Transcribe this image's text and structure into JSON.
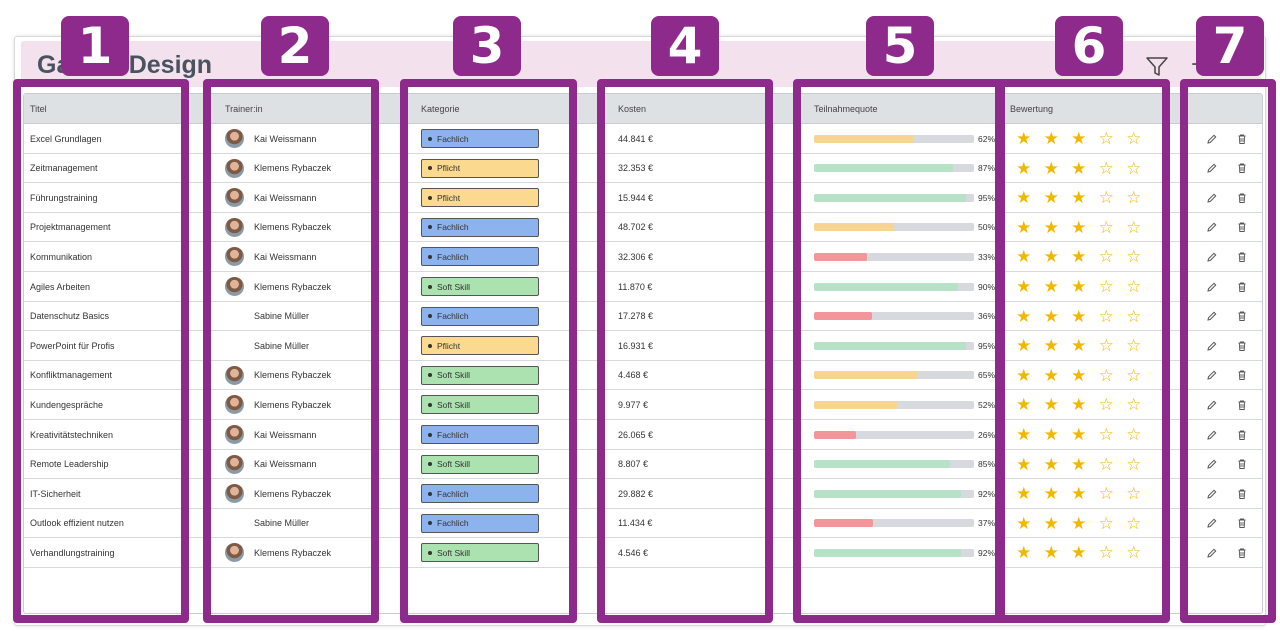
{
  "card": {
    "title": "Galerie Design"
  },
  "columns": {
    "title": "Titel",
    "trainer": "Trainer:in",
    "category": "Kategorie",
    "cost": "Kosten",
    "participation": "Teilnahmequote",
    "rating": "Bewertung"
  },
  "colors": {
    "accent_purple": "#8e2a8b",
    "header_pink": "#f4e1ee",
    "fachlich": "#8db3ee",
    "pflicht": "#fbd98f",
    "soft_skill": "#abe2b0",
    "bar_high": "#b7e2c7",
    "bar_mid": "#f7d48f",
    "bar_low": "#f4959a",
    "star": "#f2b800"
  },
  "annotations": [
    "1",
    "2",
    "3",
    "4",
    "5",
    "6",
    "7"
  ],
  "rows": [
    {
      "title": "Excel Grundlagen",
      "trainer": "Kai Weissmann",
      "has_avatar": true,
      "category": "Fachlich",
      "cost": "44.841 €",
      "pct": 62,
      "pct_label": "62%",
      "rating": 3
    },
    {
      "title": "Zeitmanagement",
      "trainer": "Klemens Rybaczek",
      "has_avatar": true,
      "category": "Pflicht",
      "cost": "32.353 €",
      "pct": 87,
      "pct_label": "87%",
      "rating": 3
    },
    {
      "title": "Führungstraining",
      "trainer": "Kai Weissmann",
      "has_avatar": true,
      "category": "Pflicht",
      "cost": "15.944 €",
      "pct": 95,
      "pct_label": "95%",
      "rating": 3
    },
    {
      "title": "Projektmanagement",
      "trainer": "Klemens Rybaczek",
      "has_avatar": true,
      "category": "Fachlich",
      "cost": "48.702 €",
      "pct": 50,
      "pct_label": "50%",
      "rating": 3
    },
    {
      "title": "Kommunikation",
      "trainer": "Kai Weissmann",
      "has_avatar": true,
      "category": "Fachlich",
      "cost": "32.306 €",
      "pct": 33,
      "pct_label": "33%",
      "rating": 3
    },
    {
      "title": "Agiles Arbeiten",
      "trainer": "Klemens Rybaczek",
      "has_avatar": true,
      "category": "Soft Skill",
      "cost": "11.870 €",
      "pct": 90,
      "pct_label": "90%",
      "rating": 3
    },
    {
      "title": "Datenschutz Basics",
      "trainer": "Sabine Müller",
      "has_avatar": false,
      "category": "Fachlich",
      "cost": "17.278 €",
      "pct": 36,
      "pct_label": "36%",
      "rating": 3
    },
    {
      "title": "PowerPoint für Profis",
      "trainer": "Sabine Müller",
      "has_avatar": false,
      "category": "Pflicht",
      "cost": "16.931 €",
      "pct": 95,
      "pct_label": "95%",
      "rating": 3
    },
    {
      "title": "Konfliktmanagement",
      "trainer": "Klemens Rybaczek",
      "has_avatar": true,
      "category": "Soft Skill",
      "cost": "4.468 €",
      "pct": 65,
      "pct_label": "65%",
      "rating": 3
    },
    {
      "title": "Kundengespräche",
      "trainer": "Klemens Rybaczek",
      "has_avatar": true,
      "category": "Soft Skill",
      "cost": "9.977 €",
      "pct": 52,
      "pct_label": "52%",
      "rating": 3
    },
    {
      "title": "Kreativitätstechniken",
      "trainer": "Kai Weissmann",
      "has_avatar": true,
      "category": "Fachlich",
      "cost": "26.065 €",
      "pct": 26,
      "pct_label": "26%",
      "rating": 3
    },
    {
      "title": "Remote Leadership",
      "trainer": "Kai Weissmann",
      "has_avatar": true,
      "category": "Soft Skill",
      "cost": "8.807 €",
      "pct": 85,
      "pct_label": "85%",
      "rating": 3
    },
    {
      "title": "IT-Sicherheit",
      "trainer": "Klemens Rybaczek",
      "has_avatar": true,
      "category": "Fachlich",
      "cost": "29.882 €",
      "pct": 92,
      "pct_label": "92%",
      "rating": 3
    },
    {
      "title": "Outlook effizient nutzen",
      "trainer": "Sabine Müller",
      "has_avatar": false,
      "category": "Fachlich",
      "cost": "11.434 €",
      "pct": 37,
      "pct_label": "37%",
      "rating": 3
    },
    {
      "title": "Verhandlungstraining",
      "trainer": "Klemens Rybaczek",
      "has_avatar": true,
      "category": "Soft Skill",
      "cost": "4.546 €",
      "pct": 92,
      "pct_label": "92%",
      "rating": 3
    }
  ]
}
